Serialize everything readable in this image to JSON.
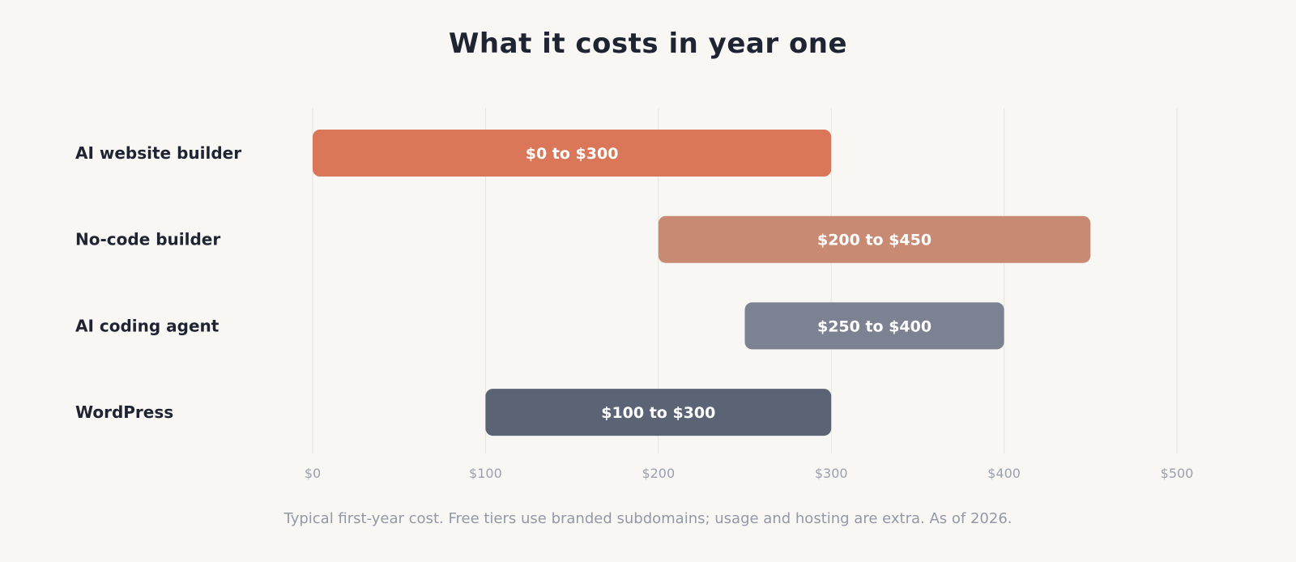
{
  "chart_data": {
    "type": "bar",
    "orientation": "horizontal",
    "title": "What it costs in year one",
    "categories": [
      "AI website builder",
      "No-code builder",
      "AI coding agent",
      "WordPress"
    ],
    "ranges": [
      {
        "low": 0,
        "high": 300,
        "label": "$0 to $300",
        "color": "#da7758"
      },
      {
        "low": 200,
        "high": 450,
        "label": "$200 to $450",
        "color": "#c98a73"
      },
      {
        "low": 250,
        "high": 400,
        "label": "$250 to $400",
        "color": "#7d8293"
      },
      {
        "low": 100,
        "high": 300,
        "label": "$100 to $300",
        "color": "#5b6475"
      }
    ],
    "xlim": [
      0,
      500
    ],
    "xticks": [
      0,
      100,
      200,
      300,
      400,
      500
    ],
    "xtick_labels": [
      "$0",
      "$100",
      "$200",
      "$300",
      "$400",
      "$500"
    ],
    "grid": true,
    "note": "Typical first-year cost. Free tiers use branded subdomains; usage and hosting are extra. As of 2026."
  }
}
